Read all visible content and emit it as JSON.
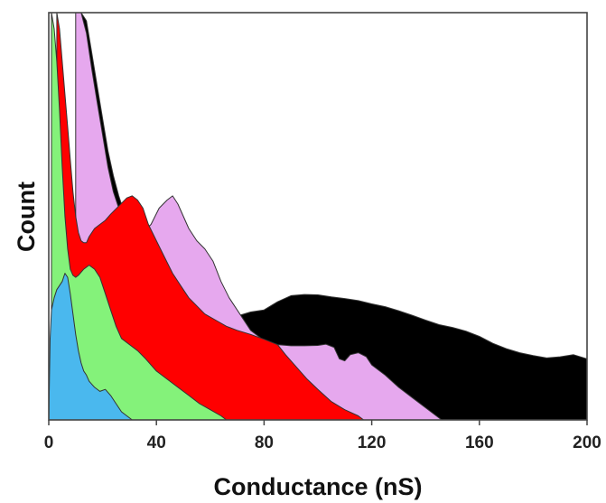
{
  "chart_data": {
    "type": "area",
    "title": "",
    "xlabel": "Conductance (nS)",
    "ylabel": "Count",
    "xlim": [
      0,
      200
    ],
    "x_ticks": [
      0,
      40,
      80,
      120,
      160,
      200
    ],
    "y_ticks_shown": false,
    "grid": false,
    "legend": "none",
    "y_units": "relative count (0–100, top of plot = 100)",
    "series": [
      {
        "color": "#000000",
        "points": [
          [
            12,
            100
          ],
          [
            14,
            98
          ],
          [
            16,
            90
          ],
          [
            18,
            82
          ],
          [
            20,
            74
          ],
          [
            22,
            66
          ],
          [
            24,
            60
          ],
          [
            26,
            55
          ],
          [
            28,
            51
          ],
          [
            30,
            47
          ],
          [
            35,
            42
          ],
          [
            40,
            38
          ],
          [
            45,
            36
          ],
          [
            50,
            33
          ],
          [
            55,
            30
          ],
          [
            60,
            28
          ],
          [
            65,
            26
          ],
          [
            70,
            25.5
          ],
          [
            75,
            26.5
          ],
          [
            80,
            27
          ],
          [
            85,
            29
          ],
          [
            90,
            30.5
          ],
          [
            95,
            30.8
          ],
          [
            100,
            30.7
          ],
          [
            105,
            30.2
          ],
          [
            110,
            29.8
          ],
          [
            115,
            29.3
          ],
          [
            120,
            28.5
          ],
          [
            125,
            27.8
          ],
          [
            130,
            26.8
          ],
          [
            135,
            25.7
          ],
          [
            140,
            24.5
          ],
          [
            145,
            23.4
          ],
          [
            150,
            22.7
          ],
          [
            155,
            21.8
          ],
          [
            160,
            20.5
          ],
          [
            165,
            18.8
          ],
          [
            170,
            17.5
          ],
          [
            175,
            16.5
          ],
          [
            180,
            15.8
          ],
          [
            185,
            15.2
          ],
          [
            190,
            15.5
          ],
          [
            195,
            16
          ],
          [
            200,
            15
          ]
        ]
      },
      {
        "color": "#e6a8ee",
        "points": [
          [
            10,
            100
          ],
          [
            12,
            100
          ],
          [
            14,
            95
          ],
          [
            16,
            86
          ],
          [
            18,
            78
          ],
          [
            20,
            70
          ],
          [
            22,
            62
          ],
          [
            24,
            56
          ],
          [
            26,
            52
          ],
          [
            28,
            48
          ],
          [
            30,
            46
          ],
          [
            32,
            46
          ],
          [
            35,
            46
          ],
          [
            38,
            48
          ],
          [
            41,
            52
          ],
          [
            44,
            54
          ],
          [
            46,
            55
          ],
          [
            48,
            53
          ],
          [
            50,
            50
          ],
          [
            52,
            47
          ],
          [
            55,
            44
          ],
          [
            58,
            42
          ],
          [
            61,
            39
          ],
          [
            64,
            34
          ],
          [
            67,
            30
          ],
          [
            70,
            27
          ],
          [
            75,
            22
          ],
          [
            80,
            19.5
          ],
          [
            85,
            18.5
          ],
          [
            90,
            18.2
          ],
          [
            95,
            18.2
          ],
          [
            100,
            18.3
          ],
          [
            103,
            18.6
          ],
          [
            106,
            17.8
          ],
          [
            108,
            15
          ],
          [
            110,
            14.5
          ],
          [
            112,
            16
          ],
          [
            115,
            16.5
          ],
          [
            118,
            15.5
          ],
          [
            120,
            13.5
          ],
          [
            125,
            11
          ],
          [
            130,
            8
          ],
          [
            135,
            5.5
          ],
          [
            140,
            3
          ],
          [
            144,
            1
          ],
          [
            146,
            0
          ]
        ]
      },
      {
        "color": "#ff0000",
        "points": [
          [
            3,
            100
          ],
          [
            4,
            96
          ],
          [
            5,
            88
          ],
          [
            6,
            80
          ],
          [
            7,
            72
          ],
          [
            8,
            64
          ],
          [
            9,
            56
          ],
          [
            10,
            50
          ],
          [
            11,
            46
          ],
          [
            12,
            44
          ],
          [
            13,
            43.5
          ],
          [
            14,
            43.5
          ],
          [
            15,
            45
          ],
          [
            17,
            47
          ],
          [
            19,
            48
          ],
          [
            21,
            49
          ],
          [
            23,
            50.5
          ],
          [
            26,
            52.5
          ],
          [
            29,
            54.5
          ],
          [
            31,
            55
          ],
          [
            33,
            54
          ],
          [
            35,
            52
          ],
          [
            37,
            48
          ],
          [
            40,
            44
          ],
          [
            43,
            40
          ],
          [
            46,
            36
          ],
          [
            49,
            33
          ],
          [
            52,
            30
          ],
          [
            55,
            28
          ],
          [
            58,
            26
          ],
          [
            62,
            24.5
          ],
          [
            66,
            23
          ],
          [
            70,
            22
          ],
          [
            75,
            21
          ],
          [
            80,
            19.8
          ],
          [
            85,
            18.5
          ],
          [
            88,
            16
          ],
          [
            92,
            13
          ],
          [
            96,
            10
          ],
          [
            100,
            7.5
          ],
          [
            105,
            4.5
          ],
          [
            110,
            2.5
          ],
          [
            115,
            1
          ],
          [
            117,
            0
          ]
        ]
      },
      {
        "color": "#84f27a",
        "points": [
          [
            1,
            100
          ],
          [
            2,
            96
          ],
          [
            3,
            88
          ],
          [
            4,
            76
          ],
          [
            5,
            62
          ],
          [
            6,
            50
          ],
          [
            7,
            42
          ],
          [
            8,
            37
          ],
          [
            9,
            35.5
          ],
          [
            10,
            35
          ],
          [
            11,
            35.5
          ],
          [
            13,
            37
          ],
          [
            15,
            38
          ],
          [
            17,
            37
          ],
          [
            19,
            35
          ],
          [
            21,
            31
          ],
          [
            23,
            27
          ],
          [
            25,
            23
          ],
          [
            27,
            20
          ],
          [
            30,
            18.5
          ],
          [
            33,
            17
          ],
          [
            36,
            15
          ],
          [
            40,
            12
          ],
          [
            44,
            10
          ],
          [
            48,
            8
          ],
          [
            52,
            6
          ],
          [
            56,
            4
          ],
          [
            60,
            2.5
          ],
          [
            64,
            1
          ],
          [
            66,
            0
          ]
        ]
      },
      {
        "color": "#4ab8ee",
        "points": [
          [
            0,
            0
          ],
          [
            0.5,
            20
          ],
          [
            1,
            27
          ],
          [
            2,
            30
          ],
          [
            3,
            32
          ],
          [
            4,
            33
          ],
          [
            5,
            34
          ],
          [
            6,
            36
          ],
          [
            7,
            35
          ],
          [
            8,
            31
          ],
          [
            9,
            26
          ],
          [
            10,
            21
          ],
          [
            11,
            17
          ],
          [
            12,
            14
          ],
          [
            13,
            12
          ],
          [
            14,
            11
          ],
          [
            15,
            9.5
          ],
          [
            17,
            8
          ],
          [
            19,
            7
          ],
          [
            21,
            7.5
          ],
          [
            23,
            6
          ],
          [
            25,
            4
          ],
          [
            27,
            2
          ],
          [
            29,
            1
          ],
          [
            31,
            0
          ]
        ]
      }
    ]
  }
}
